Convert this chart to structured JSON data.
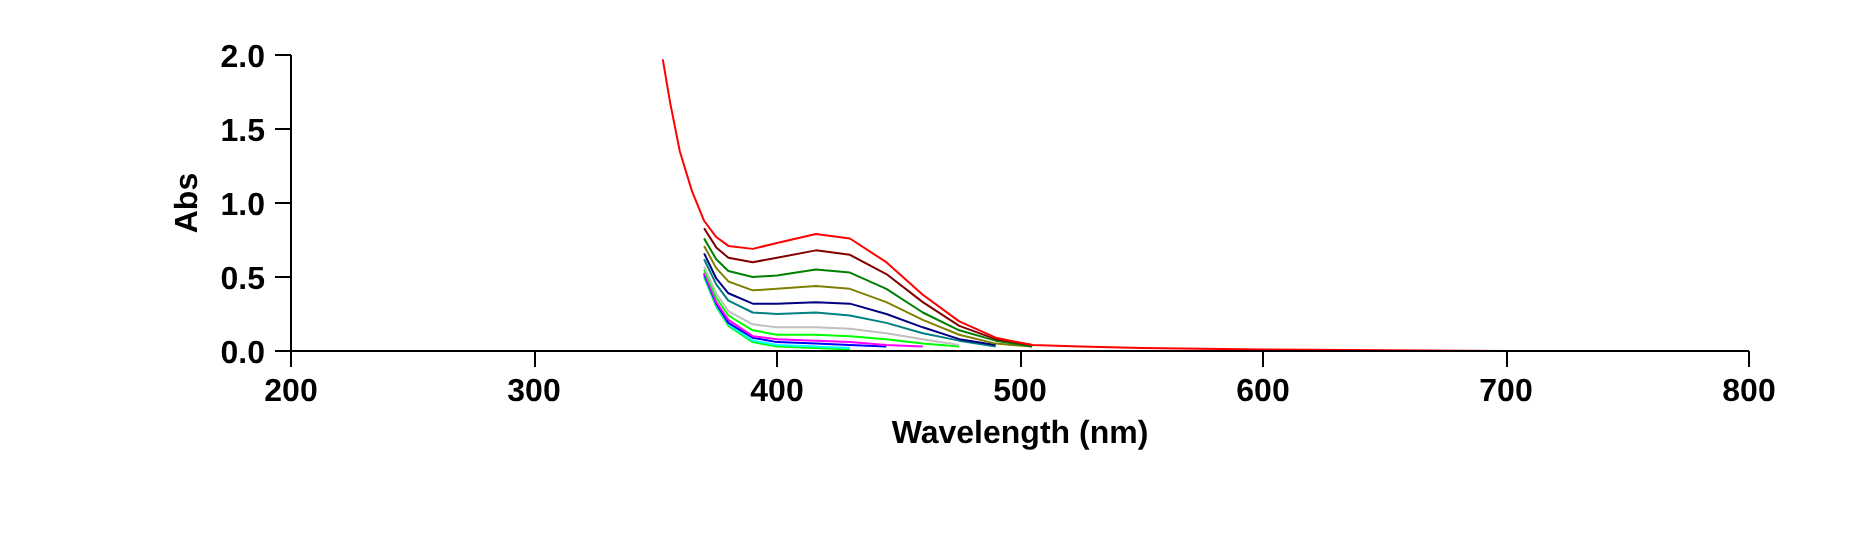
{
  "chart_data": {
    "type": "line",
    "xlabel": "Wavelength (nm)",
    "ylabel": "Abs",
    "x": [
      353,
      356,
      360,
      365,
      370,
      375,
      380,
      390,
      400,
      416,
      430,
      445,
      460,
      475,
      490,
      505,
      525,
      550,
      600,
      700,
      800
    ],
    "xlim": [
      200,
      800
    ],
    "xticks": [
      200,
      300,
      400,
      500,
      600,
      700,
      800
    ],
    "ylim": [
      0,
      2.0
    ],
    "yticks": [
      {
        "value": 0,
        "label": "0.0"
      },
      {
        "value": 0.5,
        "label": "0.5"
      },
      {
        "value": 1.0,
        "label": "1.0"
      },
      {
        "value": 1.5,
        "label": "1.5"
      },
      {
        "value": 2.0,
        "label": "2.0"
      }
    ],
    "grid": false,
    "marker": "none",
    "line_style": "solid",
    "series": [
      {
        "color": "#ff0000",
        "values": [
          1.97,
          1.68,
          1.35,
          1.08,
          0.88,
          0.77,
          0.71,
          0.69,
          0.73,
          0.79,
          0.76,
          0.6,
          0.38,
          0.2,
          0.09,
          0.04,
          0.03,
          0.02,
          0.01,
          0,
          0
        ]
      },
      {
        "color": "#800000",
        "values": [
          null,
          null,
          null,
          null,
          0.83,
          0.7,
          0.63,
          0.6,
          0.63,
          0.68,
          0.65,
          0.52,
          0.33,
          0.17,
          0.08,
          0.04,
          null,
          null,
          null,
          null,
          null
        ]
      },
      {
        "color": "#008000",
        "values": [
          null,
          null,
          null,
          null,
          0.76,
          0.62,
          0.54,
          0.5,
          0.51,
          0.55,
          0.53,
          0.42,
          0.26,
          0.14,
          0.07,
          0.03,
          null,
          null,
          null,
          null,
          null
        ]
      },
      {
        "color": "#808000",
        "values": [
          null,
          null,
          null,
          null,
          0.71,
          0.56,
          0.47,
          0.41,
          0.42,
          0.44,
          0.42,
          0.33,
          0.21,
          0.11,
          0.05,
          0.03,
          null,
          null,
          null,
          null,
          null
        ]
      },
      {
        "color": "#000080",
        "values": [
          null,
          null,
          null,
          null,
          0.66,
          0.49,
          0.39,
          0.32,
          0.32,
          0.33,
          0.32,
          0.25,
          0.16,
          0.08,
          0.04,
          null,
          null,
          null,
          null,
          null,
          null
        ]
      },
      {
        "color": "#008080",
        "values": [
          null,
          null,
          null,
          null,
          0.62,
          0.45,
          0.34,
          0.26,
          0.25,
          0.26,
          0.24,
          0.19,
          0.12,
          0.07,
          0.03,
          null,
          null,
          null,
          null,
          null,
          null
        ]
      },
      {
        "color": "#c0c0c0",
        "values": [
          null,
          null,
          null,
          null,
          0.57,
          0.39,
          0.27,
          0.18,
          0.16,
          0.16,
          0.15,
          0.12,
          0.08,
          0.04,
          null,
          null,
          null,
          null,
          null,
          null,
          null
        ]
      },
      {
        "color": "#00ff00",
        "values": [
          null,
          null,
          null,
          null,
          0.55,
          0.36,
          0.24,
          0.14,
          0.11,
          0.11,
          0.1,
          0.08,
          0.05,
          0.03,
          null,
          null,
          null,
          null,
          null,
          null,
          null
        ]
      },
      {
        "color": "#ff00ff",
        "values": [
          null,
          null,
          null,
          null,
          0.53,
          0.33,
          0.21,
          0.1,
          0.08,
          0.07,
          0.06,
          0.04,
          0.03,
          null,
          null,
          null,
          null,
          null,
          null,
          null,
          null
        ]
      },
      {
        "color": "#0000ff",
        "values": [
          null,
          null,
          null,
          null,
          0.52,
          0.32,
          0.19,
          0.09,
          0.06,
          0.05,
          0.04,
          0.03,
          null,
          null,
          null,
          null,
          null,
          null,
          null,
          null,
          null
        ]
      },
      {
        "color": "#00ffff",
        "values": [
          null,
          null,
          null,
          null,
          0.51,
          0.31,
          0.18,
          0.07,
          0.04,
          0.03,
          0.02,
          null,
          null,
          null,
          null,
          null,
          null,
          null,
          null,
          null,
          null
        ]
      },
      {
        "color": "#00ff00",
        "values": [
          null,
          null,
          null,
          null,
          0.5,
          0.3,
          0.17,
          0.06,
          0.03,
          0.02,
          0.01,
          null,
          null,
          null,
          null,
          null,
          null,
          null,
          null,
          null,
          null
        ]
      }
    ]
  }
}
